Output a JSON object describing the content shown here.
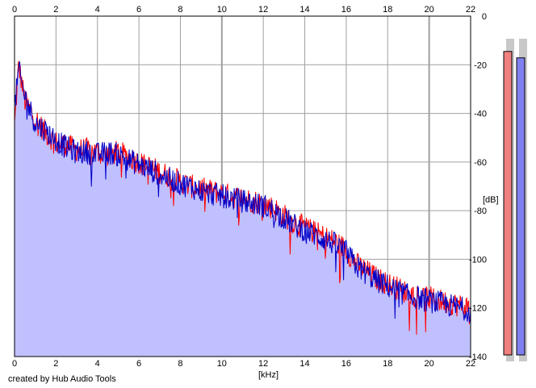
{
  "footer": {
    "credit": "created by Hub Audio Tools"
  },
  "colors": {
    "background": "#ffffff",
    "plot_fill": "#c0c0ff",
    "grid": "#a0a0a0",
    "left_channel": "#ff0000",
    "right_channel": "#0000c8",
    "meter_left": "#f08080",
    "meter_right": "#8080f0"
  },
  "chart_data": {
    "type": "line",
    "title": "",
    "xlabel": "[kHz]",
    "ylabel": "[dB]",
    "xlim": [
      0,
      22
    ],
    "ylim": [
      -140,
      0
    ],
    "x_ticks": [
      "0",
      "2",
      "4",
      "6",
      "8",
      "10",
      "12",
      "14",
      "16",
      "18",
      "20",
      "22"
    ],
    "y_ticks": [
      "0",
      "-20",
      "-40",
      "-60",
      "-80",
      "-100",
      "-120",
      "-140"
    ],
    "grid": true,
    "legend": "none",
    "x": [
      0,
      0.2,
      0.5,
      1,
      1.5,
      2,
      2.5,
      3,
      3.5,
      4,
      4.5,
      5,
      5.5,
      6,
      6.5,
      7,
      7.5,
      8,
      8.5,
      9,
      9.5,
      10,
      10.5,
      11,
      11.5,
      12,
      12.5,
      13,
      13.5,
      14,
      14.5,
      15,
      15.5,
      16,
      16.5,
      17,
      17.5,
      18,
      18.5,
      19,
      19.5,
      20,
      20.5,
      21,
      21.5,
      22
    ],
    "series": [
      {
        "values": [
          -45,
          -20,
          -35,
          -42,
          -48,
          -52,
          -53,
          -55,
          -55,
          -56,
          -57,
          -56,
          -58,
          -60,
          -62,
          -64,
          -66,
          -68,
          -70,
          -71,
          -72,
          -73,
          -74,
          -75,
          -76,
          -77,
          -79,
          -82,
          -85,
          -87,
          -89,
          -91,
          -93,
          -96,
          -102,
          -105,
          -108,
          -110,
          -112,
          -114,
          -115,
          -116,
          -117,
          -118,
          -119,
          -120
        ]
      },
      {
        "values": [
          -38,
          -22,
          -33,
          -44,
          -47,
          -51,
          -54,
          -56,
          -56,
          -57,
          -56,
          -57,
          -59,
          -61,
          -63,
          -65,
          -67,
          -69,
          -70,
          -72,
          -73,
          -74,
          -75,
          -76,
          -77,
          -78,
          -80,
          -83,
          -86,
          -88,
          -90,
          -92,
          -94,
          -97,
          -103,
          -106,
          -109,
          -111,
          -113,
          -115,
          -116,
          -117,
          -118,
          -119,
          -120,
          -121
        ]
      }
    ],
    "level_meters": [
      {
        "fill": 0.95
      },
      {
        "fill": 0.93
      }
    ]
  }
}
